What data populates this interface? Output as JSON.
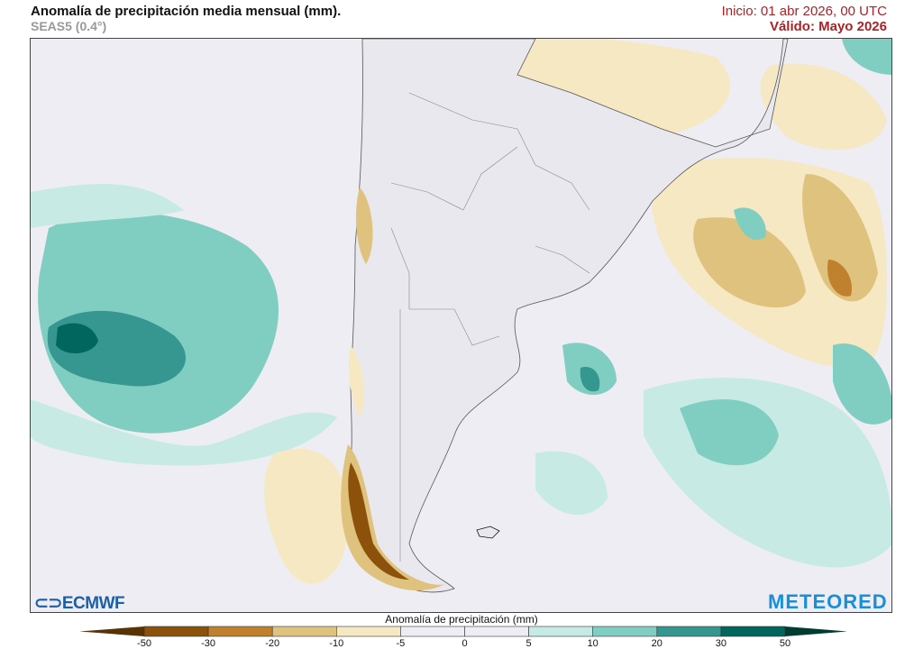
{
  "header": {
    "title": "Anomalía de precipitación media mensual (mm).",
    "subtitle": "SEAS5 (0.4°)",
    "init": "Inicio: 01 abr 2026, 00 UTC",
    "valid": "Válido: Mayo 2026"
  },
  "logos": {
    "left": "ECMWF",
    "right": "METEORED"
  },
  "colorbar": {
    "label": "Anomalía de precipitación (mm)",
    "ticks": [
      "-50",
      "-30",
      "-20",
      "-10",
      "-5",
      "0",
      "5",
      "10",
      "20",
      "30",
      "50"
    ],
    "colors": [
      "#5a3305",
      "#8c510a",
      "#bf812d",
      "#dfc27d",
      "#f6e8c3",
      "#eeedf3",
      "#eeedf3",
      "#c7eae5",
      "#80cdc1",
      "#35978f",
      "#01665e",
      "#003c30"
    ]
  }
}
